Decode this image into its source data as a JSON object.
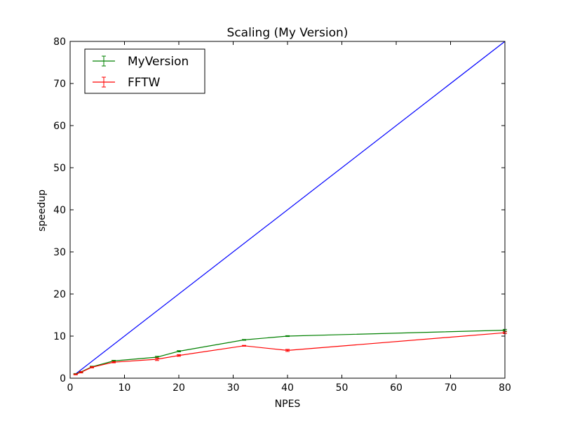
{
  "chart_data": {
    "type": "line",
    "title": "Scaling (My Version)",
    "xlabel": "NPES",
    "ylabel": "speedup",
    "xlim": [
      0,
      80
    ],
    "ylim": [
      0,
      80
    ],
    "xticks": [
      0,
      10,
      20,
      30,
      40,
      50,
      60,
      70,
      80
    ],
    "yticks": [
      0,
      10,
      20,
      30,
      40,
      50,
      60,
      70,
      80
    ],
    "grid": false,
    "legend_position": "top-left",
    "reference_line": {
      "x": [
        1,
        80
      ],
      "y": [
        1,
        80
      ],
      "color": "#0000ff"
    },
    "series": [
      {
        "name": "MyVersion",
        "color": "#008000",
        "x": [
          1,
          2,
          4,
          8,
          16,
          20,
          32,
          40,
          80
        ],
        "y": [
          1.0,
          1.5,
          2.7,
          4.1,
          5.0,
          6.4,
          9.1,
          10.0,
          11.4
        ],
        "error": [
          0.1,
          0.1,
          0.15,
          0.15,
          0.2,
          0.15,
          0.1,
          0.1,
          0.2
        ]
      },
      {
        "name": "FFTW",
        "color": "#ff0000",
        "x": [
          1,
          2,
          4,
          8,
          16,
          20,
          32,
          40,
          80
        ],
        "y": [
          0.9,
          1.4,
          2.6,
          3.8,
          4.5,
          5.4,
          7.7,
          6.6,
          10.8
        ],
        "error": [
          0.1,
          0.15,
          0.15,
          0.15,
          0.3,
          0.2,
          0.1,
          0.25,
          0.2
        ]
      }
    ]
  }
}
